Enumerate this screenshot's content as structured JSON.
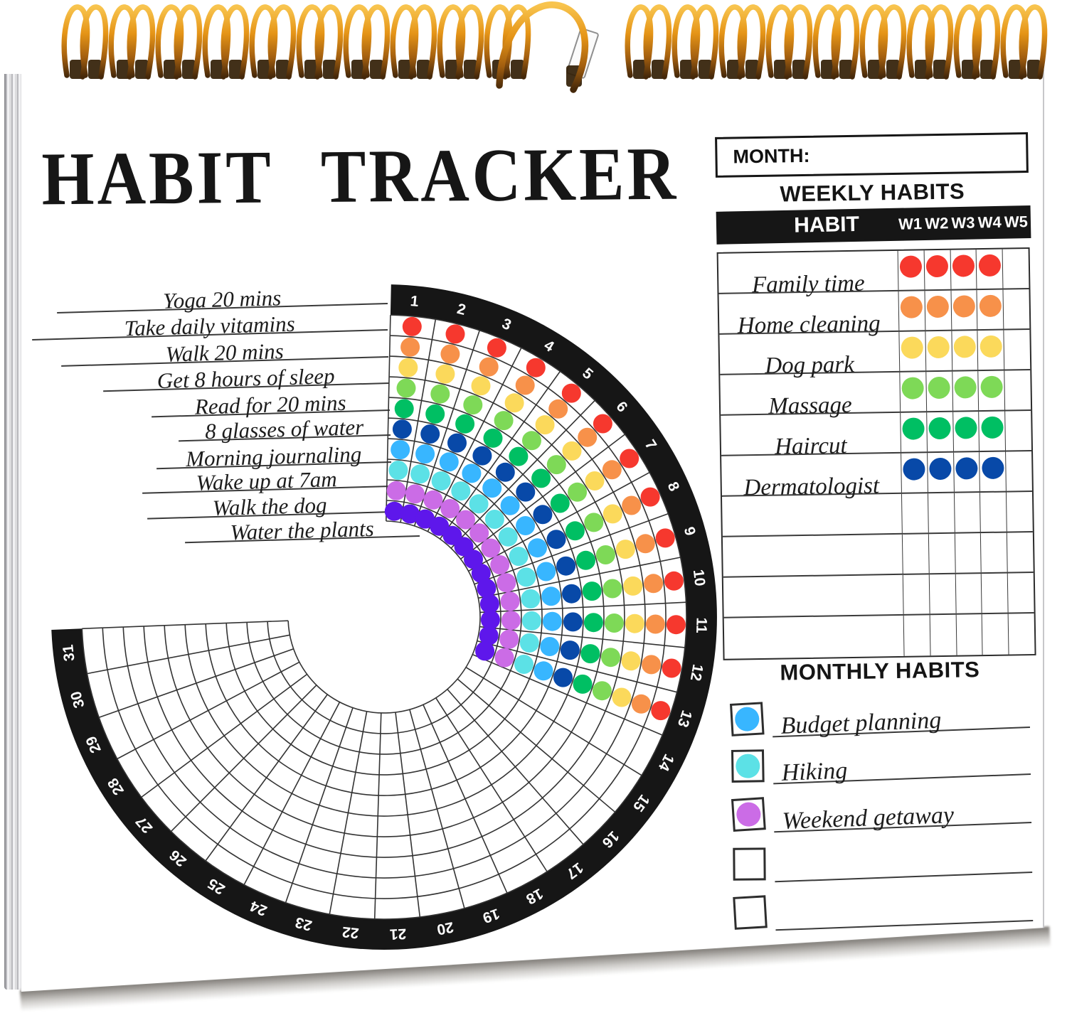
{
  "page": {
    "title": "HABIT TRACKER",
    "month_label": "MONTH:",
    "ink_color": "#1c1c1c",
    "band_color": "#161616",
    "weekly": {
      "heading": "WEEKLY HABITS",
      "habit_col": "HABIT",
      "week_cols": [
        "W1",
        "W2",
        "W3",
        "W4",
        "W5"
      ],
      "rows": [
        {
          "label": "Family time",
          "color": "#F6382E",
          "weeks": [
            1,
            1,
            1,
            1,
            0
          ]
        },
        {
          "label": "Home cleaning",
          "color": "#F7914A",
          "weeks": [
            1,
            1,
            1,
            1,
            0
          ]
        },
        {
          "label": "Dog park",
          "color": "#FBD95B",
          "weeks": [
            1,
            1,
            1,
            1,
            0
          ]
        },
        {
          "label": "Massage",
          "color": "#7ED957",
          "weeks": [
            1,
            1,
            1,
            1,
            0
          ]
        },
        {
          "label": "Haircut",
          "color": "#00BF63",
          "weeks": [
            1,
            1,
            1,
            1,
            0
          ]
        },
        {
          "label": "Dermatologist",
          "color": "#0849A8",
          "weeks": [
            1,
            1,
            1,
            1,
            0
          ]
        },
        {
          "label": "",
          "color": null,
          "weeks": [
            0,
            0,
            0,
            0,
            0
          ]
        },
        {
          "label": "",
          "color": null,
          "weeks": [
            0,
            0,
            0,
            0,
            0
          ]
        },
        {
          "label": "",
          "color": null,
          "weeks": [
            0,
            0,
            0,
            0,
            0
          ]
        },
        {
          "label": "",
          "color": null,
          "weeks": [
            0,
            0,
            0,
            0,
            0
          ]
        }
      ]
    },
    "monthly": {
      "heading": "MONTHLY HABITS",
      "items": [
        {
          "label": "Budget planning",
          "color": "#38B6FF"
        },
        {
          "label": "Hiking",
          "color": "#5CE1E6"
        },
        {
          "label": "Weekend getaway",
          "color": "#CB6CE6"
        },
        {
          "label": "",
          "color": null
        },
        {
          "label": "",
          "color": null
        }
      ]
    }
  },
  "chart_data": {
    "type": "radial-habit-tracker",
    "days": 31,
    "filled_days": 13,
    "day_labels": [
      "1",
      "2",
      "3",
      "4",
      "5",
      "6",
      "7",
      "8",
      "9",
      "10",
      "11",
      "12",
      "13",
      "14",
      "15",
      "16",
      "17",
      "18",
      "19",
      "20",
      "21",
      "22",
      "23",
      "24",
      "25",
      "26",
      "27",
      "28",
      "29",
      "30",
      "31"
    ],
    "rings": 10,
    "habits": [
      {
        "label": "Yoga 20 mins",
        "color": "#F6382E"
      },
      {
        "label": "Take daily vitamins",
        "color": "#F7914A"
      },
      {
        "label": "Walk 20 mins",
        "color": "#FBD95B"
      },
      {
        "label": "Get 8 hours of sleep",
        "color": "#7ED957"
      },
      {
        "label": "Read for 20 mins",
        "color": "#00BF63"
      },
      {
        "label": "8 glasses of water",
        "color": "#0849A8"
      },
      {
        "label": "Morning journaling",
        "color": "#38B6FF"
      },
      {
        "label": "Wake up at 7am",
        "color": "#5CE1E6"
      },
      {
        "label": "Walk the dog",
        "color": "#CB6CE6"
      },
      {
        "label": "Water the plants",
        "color": "#5E17EB"
      }
    ]
  }
}
